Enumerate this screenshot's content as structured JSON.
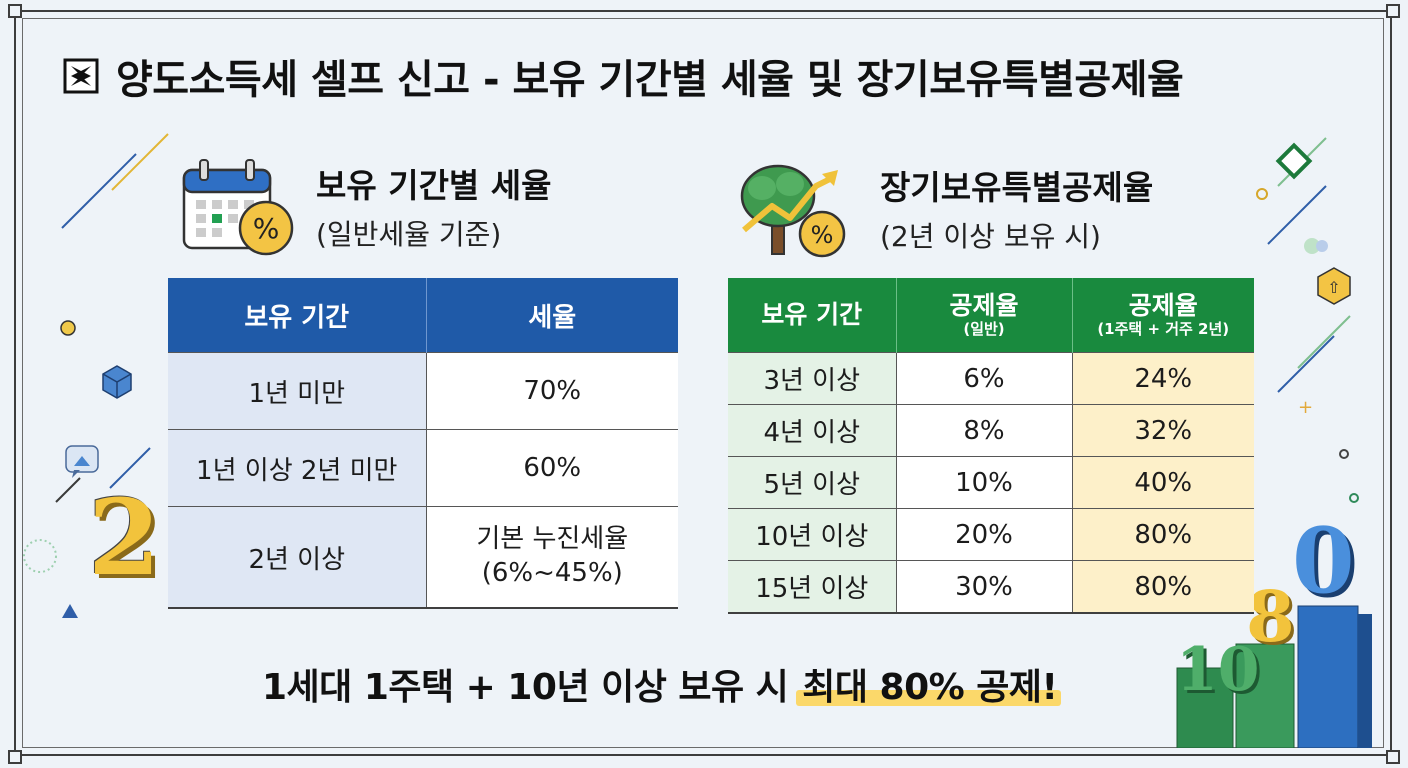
{
  "title": "양도소득세 셀프 신고 - 보유 기간별 세율 및 장기보유특별공제율",
  "left_section": {
    "title": "보유 기간별 세율",
    "subtitle": "(일반세율 기준)",
    "headers": [
      "보유 기간",
      "세율"
    ],
    "rows": [
      {
        "period": "1년 미만",
        "rate": "70%"
      },
      {
        "period": "1년 이상 2년 미만",
        "rate": "60%"
      },
      {
        "period": "2년 이상",
        "rate_line1": "기본 누진세율",
        "rate_line2": "(6%~45%)"
      }
    ]
  },
  "right_section": {
    "title": "장기보유특별공제율",
    "subtitle": "(2년 이상 보유 시)",
    "headers": {
      "period": "보유 기간",
      "general_main": "공제율",
      "general_sub": "(일반)",
      "special_main": "공제율",
      "special_sub": "(1주택 + 거주 2년)"
    },
    "rows": [
      {
        "period": "3년 이상",
        "general": "6%",
        "special": "24%"
      },
      {
        "period": "4년 이상",
        "general": "8%",
        "special": "32%"
      },
      {
        "period": "5년 이상",
        "general": "10%",
        "special": "40%"
      },
      {
        "period": "10년 이상",
        "general": "20%",
        "special": "80%"
      },
      {
        "period": "15년 이상",
        "general": "30%",
        "special": "80%"
      }
    ]
  },
  "bottom_message": {
    "main": "1세대 1주택 + 10년 이상 보유 시",
    "highlight": "최대 80% 공제!"
  },
  "decorations": {
    "number_2": "2",
    "number_10": "10",
    "number_8": "8",
    "number_0": "0",
    "percent_symbol": "%"
  },
  "colors": {
    "blue_header": "#1f5aa8",
    "green_header": "#198a3e",
    "blue_cell": "#dfe7f4",
    "green_cell": "#e4f2e6",
    "yellow_cell": "#fdf0c9",
    "highlight": "#fbd86a"
  },
  "icons": [
    "title-square-icon",
    "calendar-percent-icon",
    "tree-growth-icon"
  ]
}
